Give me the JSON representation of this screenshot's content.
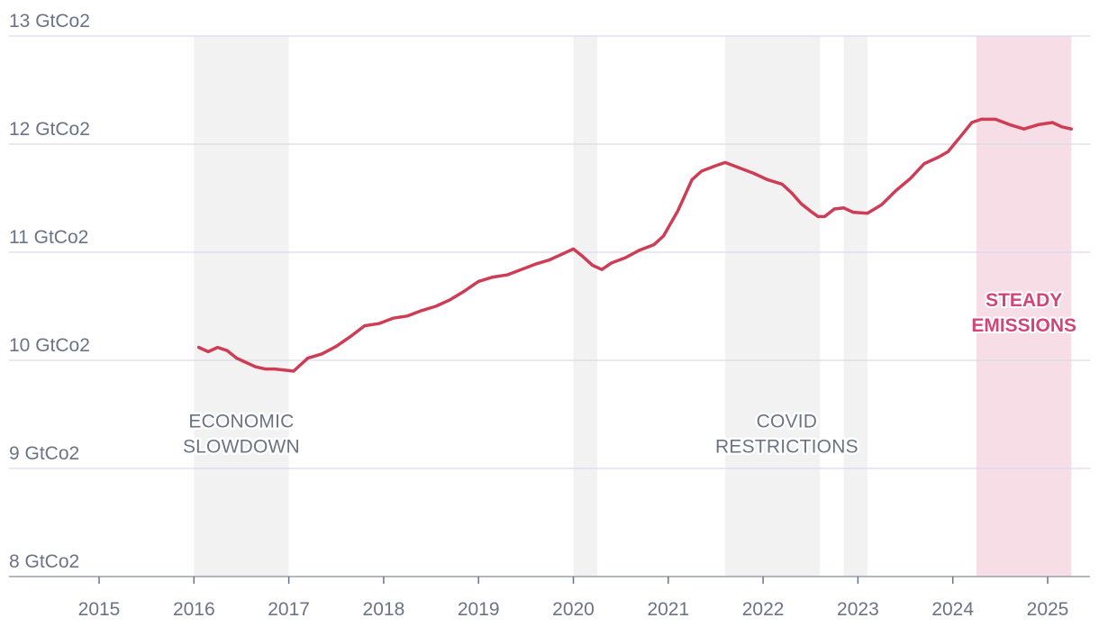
{
  "colors": {
    "line": "#cd3d55",
    "shade": "#f2f2f3",
    "accent_shade": "#f7dde6",
    "accent_text": "#d14679",
    "grid": "#d9dbe3",
    "text": "#6b7386"
  },
  "chart_data": {
    "type": "line",
    "title": "",
    "xlabel": "",
    "ylabel": "",
    "unit": "GtCo2",
    "ylim": [
      8,
      13
    ],
    "xlim": [
      2014.0,
      2025.45
    ],
    "yticks": [
      {
        "value": 13,
        "label": "13 GtCo2"
      },
      {
        "value": 12,
        "label": "12 GtCo2"
      },
      {
        "value": 11,
        "label": "11 GtCo2"
      },
      {
        "value": 10,
        "label": "10 GtCo2"
      },
      {
        "value": 9,
        "label": "9 GtCo2"
      },
      {
        "value": 8,
        "label": "8 GtCo2"
      }
    ],
    "xticks": [
      {
        "value": 2015,
        "label": "2015"
      },
      {
        "value": 2016,
        "label": "2016"
      },
      {
        "value": 2017,
        "label": "2017"
      },
      {
        "value": 2018,
        "label": "2018"
      },
      {
        "value": 2019,
        "label": "2019"
      },
      {
        "value": 2020,
        "label": "2020"
      },
      {
        "value": 2021,
        "label": "2021"
      },
      {
        "value": 2022,
        "label": "2022"
      },
      {
        "value": 2023,
        "label": "2023"
      },
      {
        "value": 2024,
        "label": "2024"
      },
      {
        "value": 2025,
        "label": "2025"
      }
    ],
    "shaded_periods": [
      {
        "start": 2016.0,
        "end": 2017.0,
        "style": "gray"
      },
      {
        "start": 2020.0,
        "end": 2020.25,
        "style": "gray"
      },
      {
        "start": 2021.6,
        "end": 2022.6,
        "style": "gray"
      },
      {
        "start": 2022.85,
        "end": 2023.1,
        "style": "gray"
      },
      {
        "start": 2024.25,
        "end": 2025.25,
        "style": "accent"
      }
    ],
    "annotations": [
      {
        "lines": [
          "ECONOMIC",
          "SLOWDOWN"
        ],
        "x": 2016.5,
        "y": 9.38,
        "style": "gray"
      },
      {
        "lines": [
          "COVID",
          "RESTRICTIONS"
        ],
        "x": 2022.25,
        "y": 9.38,
        "style": "gray"
      },
      {
        "lines": [
          "STEADY",
          "EMISSIONS"
        ],
        "x": 2024.75,
        "y": 10.5,
        "style": "accent"
      }
    ],
    "series": [
      {
        "points": [
          [
            2016.05,
            10.12
          ],
          [
            2016.15,
            10.08
          ],
          [
            2016.25,
            10.12
          ],
          [
            2016.35,
            10.09
          ],
          [
            2016.45,
            10.02
          ],
          [
            2016.55,
            9.98
          ],
          [
            2016.65,
            9.94
          ],
          [
            2016.75,
            9.92
          ],
          [
            2016.85,
            9.92
          ],
          [
            2016.95,
            9.91
          ],
          [
            2017.05,
            9.9
          ],
          [
            2017.2,
            10.02
          ],
          [
            2017.35,
            10.06
          ],
          [
            2017.5,
            10.13
          ],
          [
            2017.65,
            10.22
          ],
          [
            2017.8,
            10.32
          ],
          [
            2017.95,
            10.34
          ],
          [
            2018.1,
            10.39
          ],
          [
            2018.25,
            10.41
          ],
          [
            2018.4,
            10.46
          ],
          [
            2018.55,
            10.5
          ],
          [
            2018.7,
            10.56
          ],
          [
            2018.85,
            10.64
          ],
          [
            2019.0,
            10.73
          ],
          [
            2019.15,
            10.77
          ],
          [
            2019.3,
            10.79
          ],
          [
            2019.45,
            10.84
          ],
          [
            2019.6,
            10.89
          ],
          [
            2019.75,
            10.93
          ],
          [
            2019.9,
            10.99
          ],
          [
            2020.0,
            11.03
          ],
          [
            2020.1,
            10.96
          ],
          [
            2020.2,
            10.88
          ],
          [
            2020.3,
            10.84
          ],
          [
            2020.4,
            10.9
          ],
          [
            2020.55,
            10.95
          ],
          [
            2020.7,
            11.02
          ],
          [
            2020.85,
            11.07
          ],
          [
            2020.95,
            11.15
          ],
          [
            2021.1,
            11.38
          ],
          [
            2021.25,
            11.67
          ],
          [
            2021.35,
            11.75
          ],
          [
            2021.5,
            11.8
          ],
          [
            2021.6,
            11.83
          ],
          [
            2021.75,
            11.78
          ],
          [
            2021.9,
            11.73
          ],
          [
            2022.05,
            11.67
          ],
          [
            2022.2,
            11.63
          ],
          [
            2022.3,
            11.55
          ],
          [
            2022.4,
            11.45
          ],
          [
            2022.5,
            11.38
          ],
          [
            2022.58,
            11.33
          ],
          [
            2022.65,
            11.33
          ],
          [
            2022.75,
            11.4
          ],
          [
            2022.85,
            11.41
          ],
          [
            2022.95,
            11.37
          ],
          [
            2023.1,
            11.36
          ],
          [
            2023.25,
            11.44
          ],
          [
            2023.4,
            11.57
          ],
          [
            2023.55,
            11.68
          ],
          [
            2023.7,
            11.82
          ],
          [
            2023.85,
            11.88
          ],
          [
            2023.95,
            11.93
          ],
          [
            2024.1,
            12.09
          ],
          [
            2024.2,
            12.2
          ],
          [
            2024.3,
            12.23
          ],
          [
            2024.45,
            12.23
          ],
          [
            2024.6,
            12.18
          ],
          [
            2024.75,
            12.14
          ],
          [
            2024.9,
            12.18
          ],
          [
            2025.05,
            12.2
          ],
          [
            2025.15,
            12.16
          ],
          [
            2025.25,
            12.14
          ]
        ]
      }
    ]
  }
}
